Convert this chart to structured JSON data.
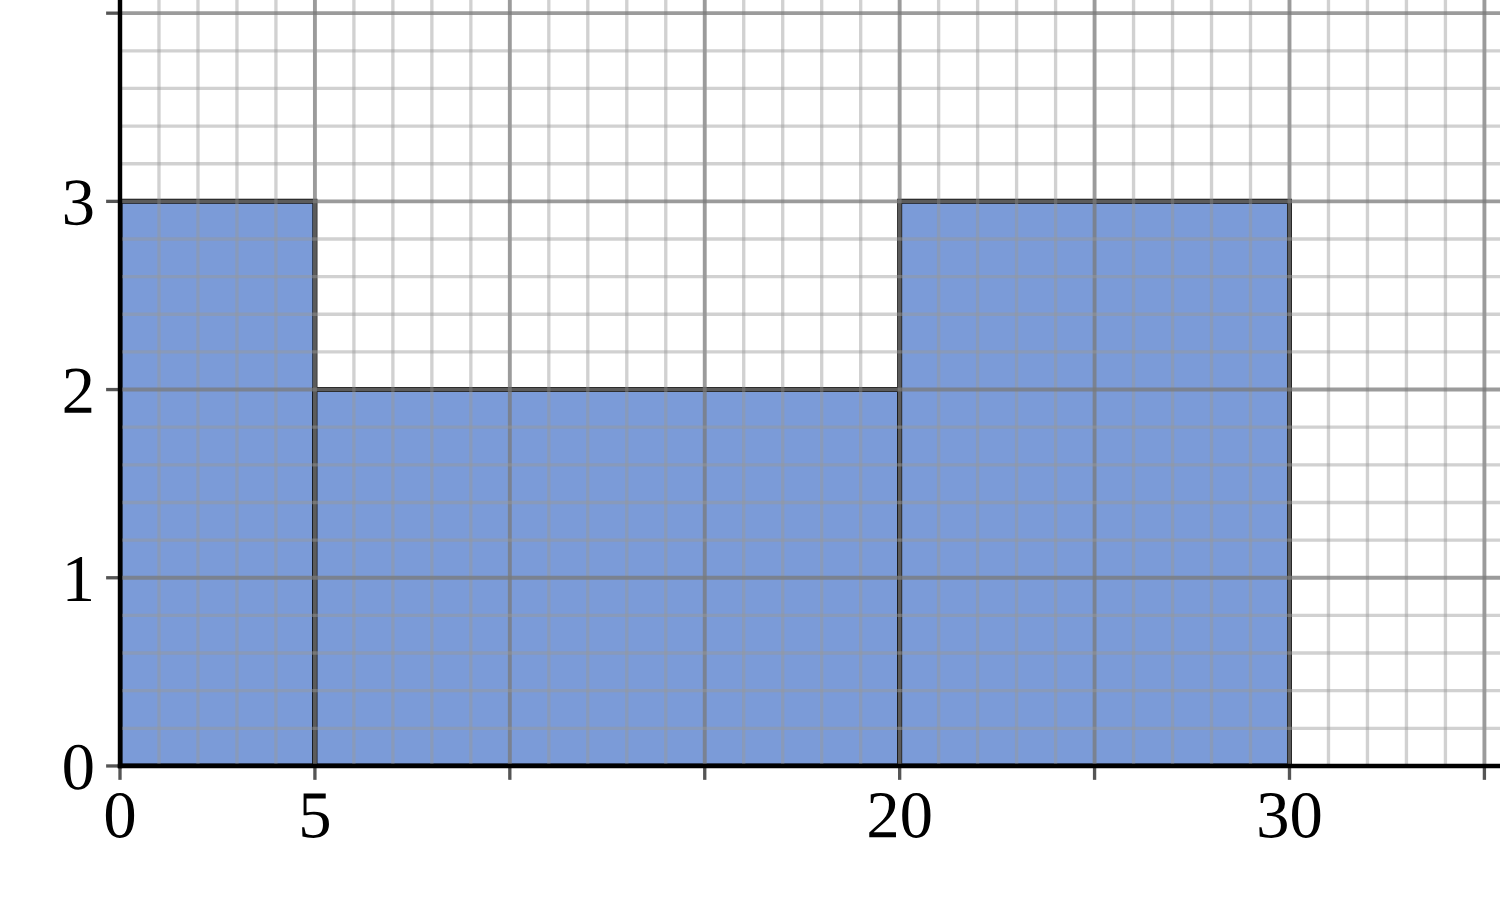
{
  "chart_data": {
    "type": "histogram",
    "bins": [
      0,
      5,
      20,
      30
    ],
    "values": [
      3,
      2,
      3
    ],
    "color": "#7b9bd8",
    "xlim": [
      0,
      35.4
    ],
    "ylim": [
      0,
      4.07
    ],
    "xticks": [
      0,
      5,
      {
        "value": 10,
        "label": null
      },
      {
        "value": 15,
        "label": null
      },
      20,
      {
        "value": 25,
        "label": null
      },
      30,
      {
        "value": 35,
        "label": null
      }
    ],
    "yticks": [
      0,
      1,
      2,
      3,
      {
        "value": 4,
        "label": null
      }
    ],
    "grid": true
  }
}
